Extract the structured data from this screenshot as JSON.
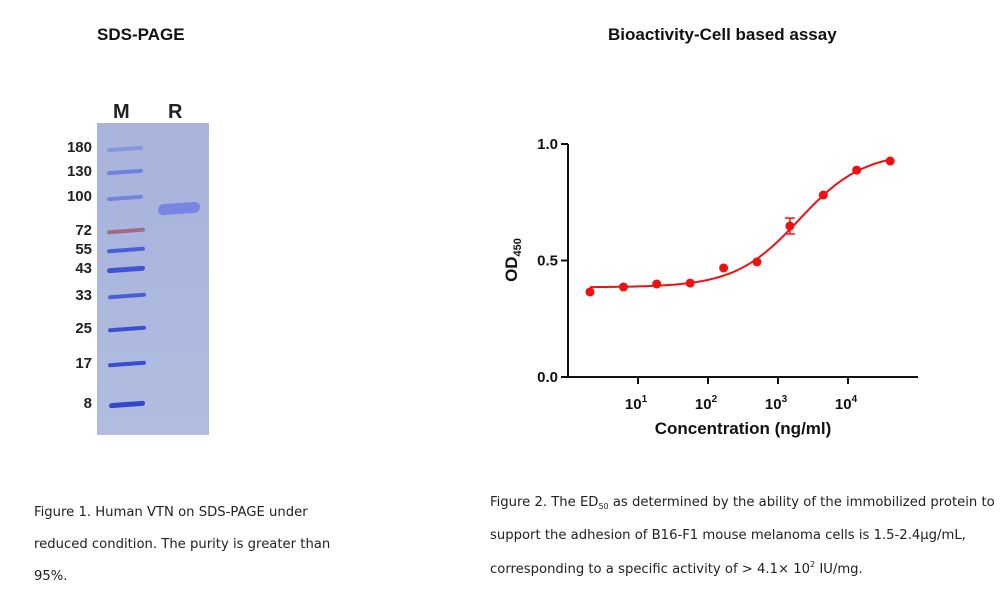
{
  "left_panel": {
    "title": "SDS-PAGE",
    "lane_labels": [
      "M",
      "R"
    ],
    "marker_kda": [
      "180",
      "130",
      "100",
      "72",
      "55",
      "43",
      "33",
      "25",
      "17",
      "8"
    ],
    "caption": "Figure 1. Human VTN on SDS-PAGE under reduced condition. The purity is greater than 95%."
  },
  "right_panel": {
    "title": "Bioactivity-Cell based assay",
    "caption": {
      "part1": "Figure 2. The ED",
      "ed_sub": "50",
      "part2": " as determined by the ability of the immobilized protein to support the adhesion of B16-F1 mouse melanoma cells is 1.5-2.4μg/mL, corresponding to a specific activity of > 4.1× 10",
      "exp_sup": "2",
      "part3": " IU/mg."
    }
  },
  "colors": {
    "curve": "#ee1111",
    "gel_background": "#abb6de",
    "marker_band": "#3a4fd0",
    "marker_band_72": "#a0506a",
    "sample_band": "#6a78e0"
  },
  "chart_data": {
    "type": "scatter",
    "title": "Bioactivity-Cell based assay",
    "xlabel": "Concentration (ng/ml)",
    "ylabel": "OD450",
    "ylabel_main": "OD",
    "ylabel_sub": "450",
    "x_scale": "log",
    "xlim": [
      1,
      100000
    ],
    "ylim": [
      0,
      1.0
    ],
    "x_ticks": [
      10,
      100,
      1000,
      10000
    ],
    "x_tick_labels": [
      {
        "base": "10",
        "exp": "1"
      },
      {
        "base": "10",
        "exp": "2"
      },
      {
        "base": "10",
        "exp": "3"
      },
      {
        "base": "10",
        "exp": "4"
      }
    ],
    "y_ticks": [
      0.0,
      0.5,
      1.0
    ],
    "y_tick_labels": [
      "0.0",
      "0.5",
      "1.0"
    ],
    "grid": false,
    "legend": "none",
    "series": [
      {
        "name": "VTN",
        "x": [
          2.06,
          6.2,
          18.5,
          55.6,
          167,
          500,
          1480,
          4440,
          13300,
          40000
        ],
        "y": [
          0.365,
          0.386,
          0.399,
          0.403,
          0.468,
          0.494,
          0.648,
          0.781,
          0.888,
          0.927
        ],
        "error": [
          null,
          null,
          null,
          null,
          null,
          null,
          0.034,
          null,
          null,
          null
        ],
        "fit": {
          "model": "4PL",
          "bottom": 0.385,
          "top": 0.965,
          "ec50": 2000,
          "hill": 0.95
        }
      }
    ]
  }
}
